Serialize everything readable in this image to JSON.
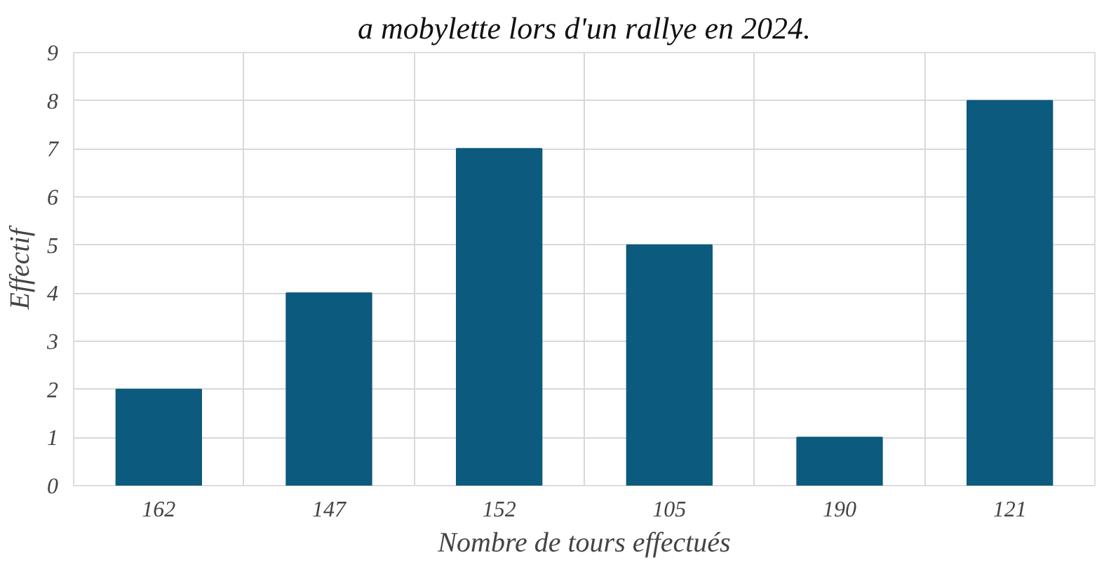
{
  "chart_data": {
    "type": "bar",
    "title": "a mobylette lors d'un rallye en 2024.",
    "xlabel": "Nombre de tours effectués",
    "ylabel": "Effectif",
    "categories": [
      "162",
      "147",
      "152",
      "105",
      "190",
      "121"
    ],
    "values": [
      2,
      4,
      7,
      5,
      1,
      8
    ],
    "color": "#0c5a7e",
    "ylim": [
      0,
      9
    ],
    "yticks": [
      0,
      1,
      2,
      3,
      4,
      5,
      6,
      7,
      8,
      9
    ],
    "grid": true
  }
}
